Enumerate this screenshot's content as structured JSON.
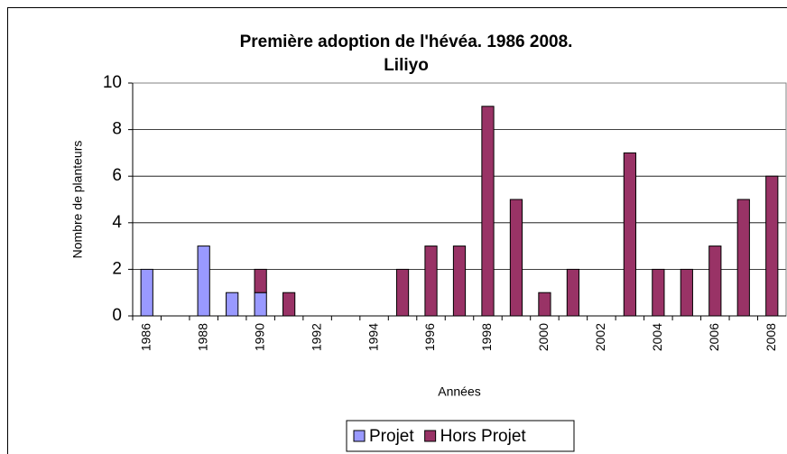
{
  "chart_data": {
    "type": "bar",
    "stacked": true,
    "title": "Première adoption de l'hévéa. 1986 2008.",
    "subtitle": "Liliyo",
    "y_label": "Nombre de planteurs",
    "x_label": "Années",
    "categories": [
      "1986",
      null,
      "1988",
      null,
      "1990",
      null,
      "1992",
      null,
      "1994",
      null,
      "1996",
      null,
      "1998",
      null,
      "2000",
      null,
      "2002",
      null,
      "2004",
      null,
      "2006",
      null,
      "2008"
    ],
    "series": [
      {
        "name": "Projet",
        "color": "#9999ff",
        "values": [
          2,
          0,
          3,
          1,
          1,
          0,
          0,
          0,
          0,
          0,
          0,
          0,
          0,
          0,
          0,
          0,
          0,
          0,
          0,
          0,
          0,
          0,
          0
        ]
      },
      {
        "name": "Hors Projet",
        "color": "#993366",
        "values": [
          0,
          0,
          0,
          0,
          1,
          1,
          0,
          0,
          0,
          2,
          3,
          3,
          9,
          5,
          1,
          2,
          0,
          7,
          2,
          2,
          3,
          5,
          6
        ]
      }
    ],
    "ylim": [
      0,
      10
    ],
    "yticks": [
      0,
      2,
      4,
      6,
      8,
      10
    ],
    "grid": true,
    "legend": "bottom"
  }
}
